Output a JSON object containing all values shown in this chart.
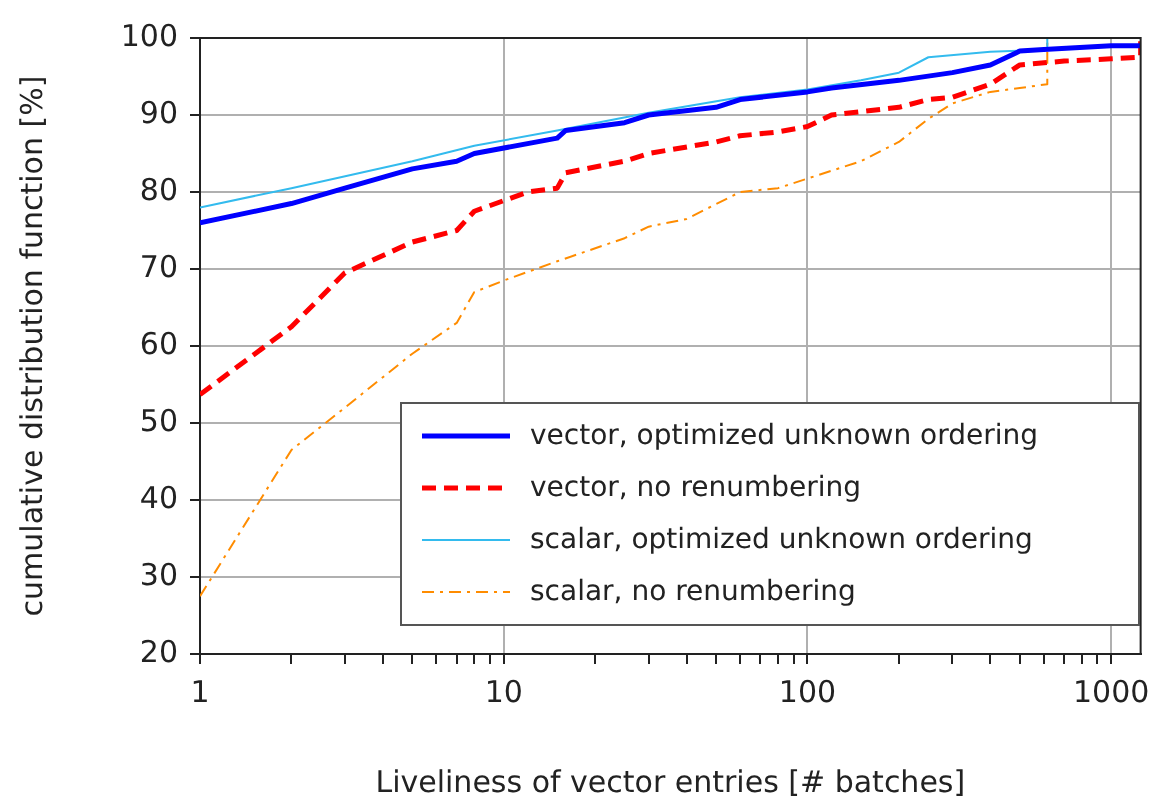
{
  "chart_data": {
    "type": "line",
    "xlabel": "Liveliness of vector entries [# batches]",
    "ylabel": "cumulative distribution function [%]",
    "log": "x",
    "xlim": [
      1,
      1250
    ],
    "xticks": [
      1,
      {
        "value": 2,
        "label": null
      },
      {
        "value": 3,
        "label": null
      },
      {
        "value": 4,
        "label": null
      },
      {
        "value": 5,
        "label": null
      },
      {
        "value": 6,
        "label": null
      },
      {
        "value": 7,
        "label": null
      },
      {
        "value": 8,
        "label": null
      },
      {
        "value": 9,
        "label": null
      },
      10,
      {
        "value": 20,
        "label": null
      },
      {
        "value": 30,
        "label": null
      },
      {
        "value": 40,
        "label": null
      },
      {
        "value": 50,
        "label": null
      },
      {
        "value": 60,
        "label": null
      },
      {
        "value": 70,
        "label": null
      },
      {
        "value": 80,
        "label": null
      },
      {
        "value": 90,
        "label": null
      },
      100,
      {
        "value": 200,
        "label": null
      },
      {
        "value": 300,
        "label": null
      },
      {
        "value": 400,
        "label": null
      },
      {
        "value": 500,
        "label": null
      },
      {
        "value": 600,
        "label": null
      },
      {
        "value": 700,
        "label": null
      },
      {
        "value": 800,
        "label": null
      },
      {
        "value": 900,
        "label": null
      },
      1000
    ],
    "ylim": [
      20,
      100
    ],
    "yticks": [
      20,
      30,
      40,
      50,
      60,
      70,
      80,
      90,
      100
    ],
    "grid": true,
    "legend": "bottom right",
    "marker": "none",
    "series": [
      {
        "name": "vector, optimized unknown ordering",
        "color": "#0000ff",
        "line_style": "solid",
        "x": [
          1,
          2,
          3,
          5,
          7,
          8,
          15,
          16,
          25,
          30,
          50,
          60,
          100,
          120,
          200,
          300,
          400,
          500,
          600,
          1000,
          1250
        ],
        "values": [
          76,
          78.5,
          80.5,
          83,
          84,
          85,
          87,
          88,
          89,
          90,
          91,
          92,
          93,
          93.5,
          94.5,
          95.5,
          96.5,
          98.3,
          98.5,
          99,
          99
        ]
      },
      {
        "name": "vector, no renumbering",
        "color": "#ff0000",
        "line_style": "dashed",
        "x": [
          1,
          2,
          3,
          5,
          7,
          8,
          12,
          15,
          16,
          25,
          30,
          50,
          60,
          80,
          100,
          120,
          200,
          250,
          300,
          400,
          500,
          700,
          1000,
          1250,
          1250
        ],
        "values": [
          53.7,
          62.5,
          69.5,
          73.5,
          75,
          77.5,
          80,
          80.5,
          82.5,
          84,
          85,
          86.5,
          87.3,
          87.8,
          88.5,
          90,
          91,
          92,
          92.3,
          94,
          96.5,
          97,
          97.3,
          97.5,
          100
        ]
      },
      {
        "name": "scalar, optimized unknown ordering",
        "color": "#33bbee",
        "line_style": "solid",
        "x": [
          1,
          2,
          5,
          8,
          15,
          30,
          60,
          100,
          150,
          200,
          250,
          400,
          616,
          616
        ],
        "values": [
          78,
          80.5,
          84,
          86,
          88,
          90.3,
          92.3,
          93.3,
          94.5,
          95.5,
          97.5,
          98.2,
          98.5,
          100
        ]
      },
      {
        "name": "scalar, no renumbering",
        "color": "#ff8c00",
        "line_style": "dashdot",
        "x": [
          1,
          2,
          3,
          5,
          7,
          8,
          10,
          15,
          25,
          30,
          40,
          60,
          80,
          150,
          200,
          250,
          300,
          400,
          500,
          616,
          616
        ],
        "values": [
          27.5,
          46.5,
          52,
          59,
          63,
          67,
          68.5,
          71,
          74,
          75.5,
          76.5,
          80,
          80.5,
          84,
          86.5,
          89.5,
          91.5,
          93,
          93.5,
          94,
          100
        ]
      }
    ]
  }
}
